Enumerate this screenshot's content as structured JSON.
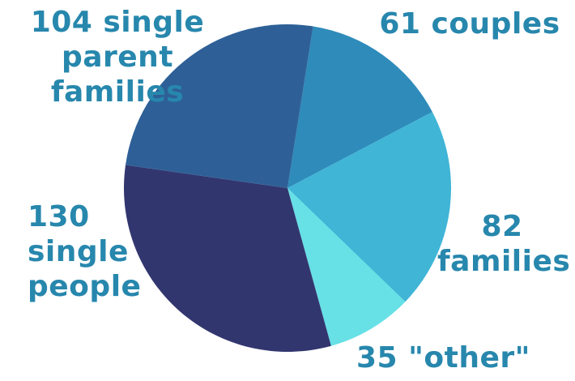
{
  "chart_data": {
    "type": "pie",
    "title": "",
    "slices": [
      {
        "name": "couples",
        "value": 61,
        "color": "#2e8bba"
      },
      {
        "name": "families",
        "value": 82,
        "color": "#40b5d6"
      },
      {
        "name": "other",
        "value": 35,
        "color": "#67e0e6"
      },
      {
        "name": "single people",
        "value": 130,
        "color": "#32366f"
      },
      {
        "name": "single parent families",
        "value": 104,
        "color": "#2e6097"
      }
    ]
  },
  "labels": {
    "couples": [
      "61 couples"
    ],
    "families": [
      "82",
      "families"
    ],
    "other": [
      "35 \"other\""
    ],
    "single_people": [
      "130",
      "single",
      "people"
    ],
    "single_parent": [
      "104 single",
      "parent",
      "families"
    ]
  }
}
